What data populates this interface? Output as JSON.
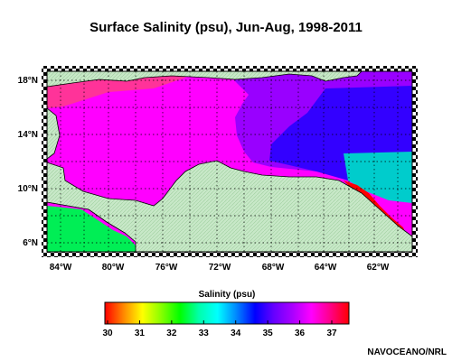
{
  "title": "Surface Salinity (psu), Jun-Aug, 1998-2011",
  "lat_labels": [
    "18°N",
    "14°N",
    "10°N",
    "6°N"
  ],
  "lon_labels": [
    "84°W",
    "80°W",
    "76°W",
    "72°W",
    "68°W",
    "64°W",
    "62°W"
  ],
  "colorbar": {
    "title": "Salinity (psu)",
    "ticks": [
      "30",
      "31",
      "32",
      "33",
      "34",
      "35",
      "36",
      "37"
    ],
    "stops": [
      "#ff0000",
      "#ff8800",
      "#ffff00",
      "#88ff00",
      "#00ff00",
      "#00ffaa",
      "#00ffff",
      "#0088ff",
      "#0000ff",
      "#6600ff",
      "#aa00ff",
      "#ff00ff",
      "#ff0088",
      "#ff0000"
    ]
  },
  "credit": "NAVOCEANO/NRL",
  "colors": {
    "land": "#c8e8c8",
    "magenta": "#ff00ff",
    "pink": "#ff3399",
    "purple": "#9900ff",
    "blue": "#3300ff",
    "cyan": "#00cccc",
    "green": "#00ee55",
    "red": "#ff0000"
  }
}
